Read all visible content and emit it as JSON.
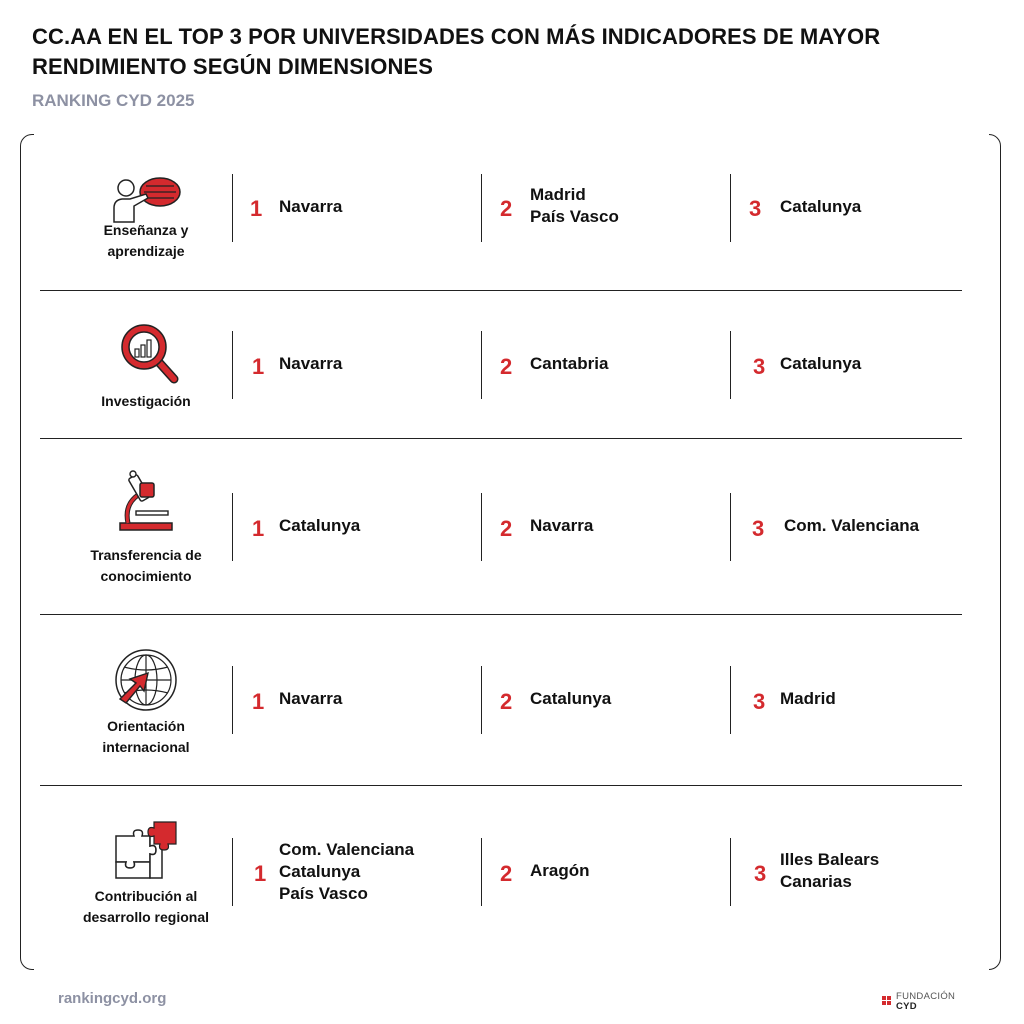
{
  "header": {
    "title": "CC.AA EN EL TOP 3 POR UNIVERSIDADES CON MÁS INDICADORES DE MAYOR RENDIMIENTO SEGÚN DIMENSIONES",
    "subtitle": "RANKING CYD 2025"
  },
  "rows": [
    {
      "icon": "teacher-presentation-icon",
      "label_lines": [
        "Enseñanza y",
        "aprendizaje"
      ],
      "ranks": [
        {
          "rank": "1",
          "names": [
            "Navarra"
          ]
        },
        {
          "rank": "2",
          "names": [
            "Madrid",
            "País Vasco"
          ]
        },
        {
          "rank": "3",
          "names": [
            "Catalunya"
          ]
        }
      ]
    },
    {
      "icon": "magnifier-chart-icon",
      "label_lines": [
        "Investigación"
      ],
      "ranks": [
        {
          "rank": "1",
          "names": [
            "Navarra"
          ]
        },
        {
          "rank": "2",
          "names": [
            "Cantabria"
          ]
        },
        {
          "rank": "3",
          "names": [
            "Catalunya"
          ]
        }
      ]
    },
    {
      "icon": "microscope-icon",
      "label_lines": [
        "Transferencia de",
        "conocimiento"
      ],
      "ranks": [
        {
          "rank": "1",
          "names": [
            "Catalunya"
          ]
        },
        {
          "rank": "2",
          "names": [
            "Navarra"
          ]
        },
        {
          "rank": "3",
          "names": [
            "Com. Valenciana"
          ]
        }
      ]
    },
    {
      "icon": "globe-arrow-icon",
      "label_lines": [
        "Orientación",
        "internacional"
      ],
      "ranks": [
        {
          "rank": "1",
          "names": [
            "Navarra"
          ]
        },
        {
          "rank": "2",
          "names": [
            "Catalunya"
          ]
        },
        {
          "rank": "3",
          "names": [
            "Madrid"
          ]
        }
      ]
    },
    {
      "icon": "puzzle-icon",
      "label_lines": [
        "Contribución al",
        "desarrollo regional"
      ],
      "ranks": [
        {
          "rank": "1",
          "names": [
            "Com. Valenciana",
            "Catalunya",
            "País Vasco"
          ]
        },
        {
          "rank": "2",
          "names": [
            "Aragón"
          ]
        },
        {
          "rank": "3",
          "names": [
            "Illes Balears",
            "Canarias"
          ]
        }
      ]
    }
  ],
  "footer": {
    "url": "rankingcyd.org",
    "logo_line1": "FUNDACIÓN",
    "logo_line2": "CYD"
  },
  "colors": {
    "accent": "#d42a2e",
    "subtitle_gray": "#8d91a3",
    "text": "#111111"
  }
}
